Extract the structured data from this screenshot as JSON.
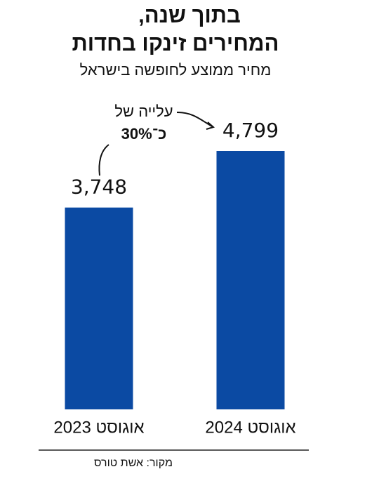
{
  "chart_data": {
    "type": "bar",
    "title": [
      "בתוך שנה,",
      "המחירים זינקו בחדות"
    ],
    "subtitle": "מחיר ממוצע לחופשה בישראל",
    "categories": [
      "אוגוסט 2023",
      "אוגוסט 2024"
    ],
    "values": [
      3748,
      4799
    ],
    "value_labels": [
      "3,748",
      "4,799"
    ],
    "color": "#0b4aa3",
    "annotation": [
      "עלייה של",
      "כ־30%"
    ],
    "source": "מקור: אשת טורס"
  }
}
